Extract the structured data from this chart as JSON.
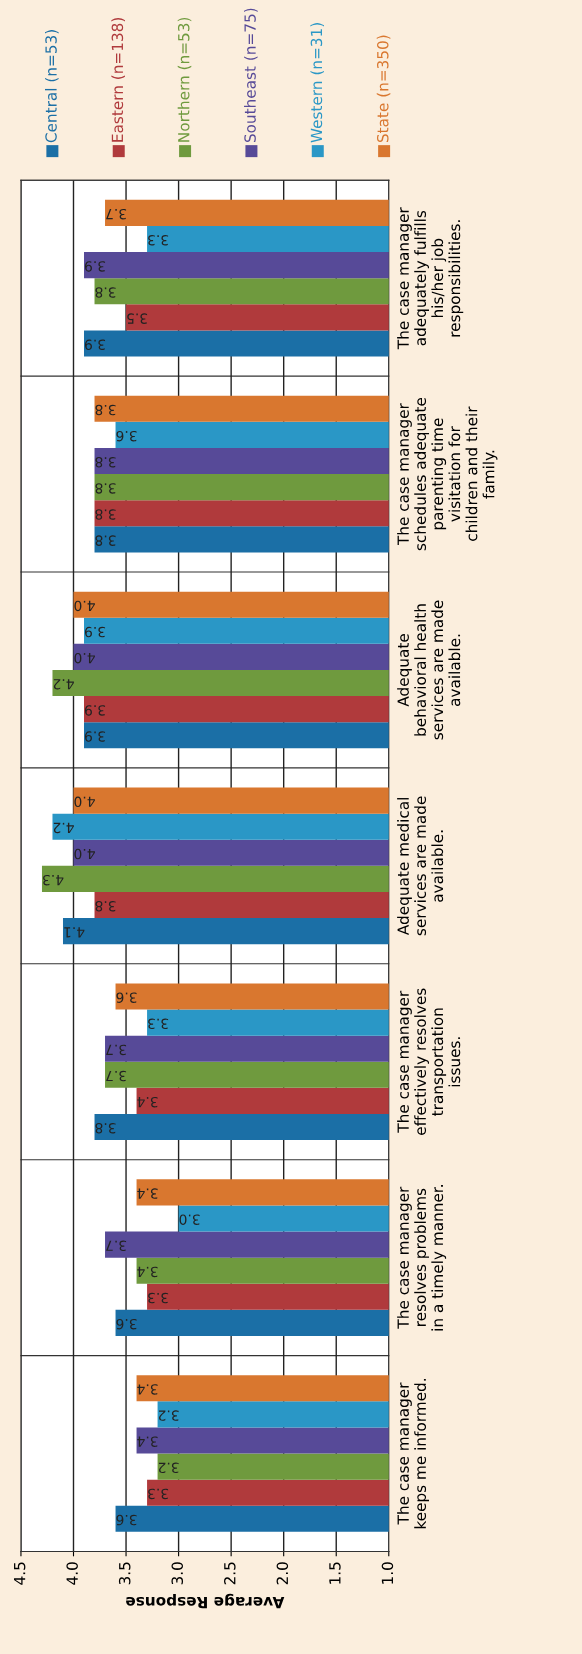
{
  "chart_data": {
    "type": "bar",
    "orientation": "horizontal",
    "xlabel": "Average Response",
    "categories": [
      "The case manager\nadequately fulfills\nhis/her job\nresponsibilities.",
      "The case manager\nschedules adequate\nparenting time\nvisitation for\nchildren and their\nfamily.",
      "Adequate\nbehavioral health\nservices are made\navailable.",
      "Adequate medical\nservices are made\navailable.",
      "The case manager\neffectively resolves\ntransportation\nissues.",
      "The case manager\nresolves problems\nin a timely manner.",
      "The case manager\nkeeps me informed."
    ],
    "series": [
      {
        "name": "Central (n=53)",
        "color": "#1b6fa6",
        "values": [
          3.9,
          3.8,
          3.9,
          4.1,
          3.8,
          3.6,
          3.6
        ],
        "value_labels": [
          "3.9",
          "3.8",
          "3.9",
          "4.1",
          "3.8",
          "3.6",
          "3.6"
        ]
      },
      {
        "name": "Eastern (n=138)",
        "color": "#b03a3c",
        "values": [
          3.5,
          3.8,
          3.9,
          3.8,
          3.4,
          3.3,
          3.3
        ],
        "value_labels": [
          "3.5",
          "3.8",
          "3.9",
          "3.8",
          "3.4",
          "3.3",
          "3.3"
        ]
      },
      {
        "name": "Northern (n=53)",
        "color": "#6f9a3e",
        "values": [
          3.8,
          3.8,
          4.2,
          4.3,
          3.7,
          3.4,
          3.2
        ],
        "value_labels": [
          "3.8",
          "3.8",
          "4.2",
          "4.3",
          "3.7",
          "3.4",
          "3.2"
        ]
      },
      {
        "name": "Southeast (n=75)",
        "color": "#574a98",
        "values": [
          3.9,
          3.8,
          4.0,
          4.0,
          3.7,
          3.7,
          3.4
        ],
        "value_labels": [
          "3.9",
          "3.8",
          "4.0",
          "4.0",
          "3.7",
          "3.7",
          "3.4"
        ]
      },
      {
        "name": "Western (n=31)",
        "color": "#2a97c6",
        "values": [
          3.3,
          3.6,
          3.9,
          4.2,
          3.3,
          3.0,
          3.2
        ],
        "value_labels": [
          "3.3",
          "3.6",
          "3.9",
          "4.2",
          "3.3",
          "3.0",
          "3.2"
        ]
      },
      {
        "name": "State (n=350)",
        "color": "#d9772f",
        "values": [
          3.7,
          3.8,
          4.0,
          4.0,
          3.6,
          3.4,
          3.4
        ],
        "value_labels": [
          "3.7",
          "3.8",
          "4.0",
          "4.0",
          "3.6",
          "3.4",
          "3.4"
        ]
      }
    ],
    "xlim": [
      4.5,
      1.0
    ],
    "xticks": [
      {
        "value": 4.5,
        "label": "4.5"
      },
      {
        "value": 4.0,
        "label": "4.0"
      },
      {
        "value": 3.5,
        "label": "3.5"
      },
      {
        "value": 3.0,
        "label": "3.0"
      },
      {
        "value": 2.5,
        "label": "2.5"
      },
      {
        "value": 2.0,
        "label": "2.0"
      },
      {
        "value": 1.5,
        "label": "1.5"
      },
      {
        "value": 1.0,
        "label": "1.0"
      }
    ],
    "grid": "x",
    "legend": "top"
  }
}
